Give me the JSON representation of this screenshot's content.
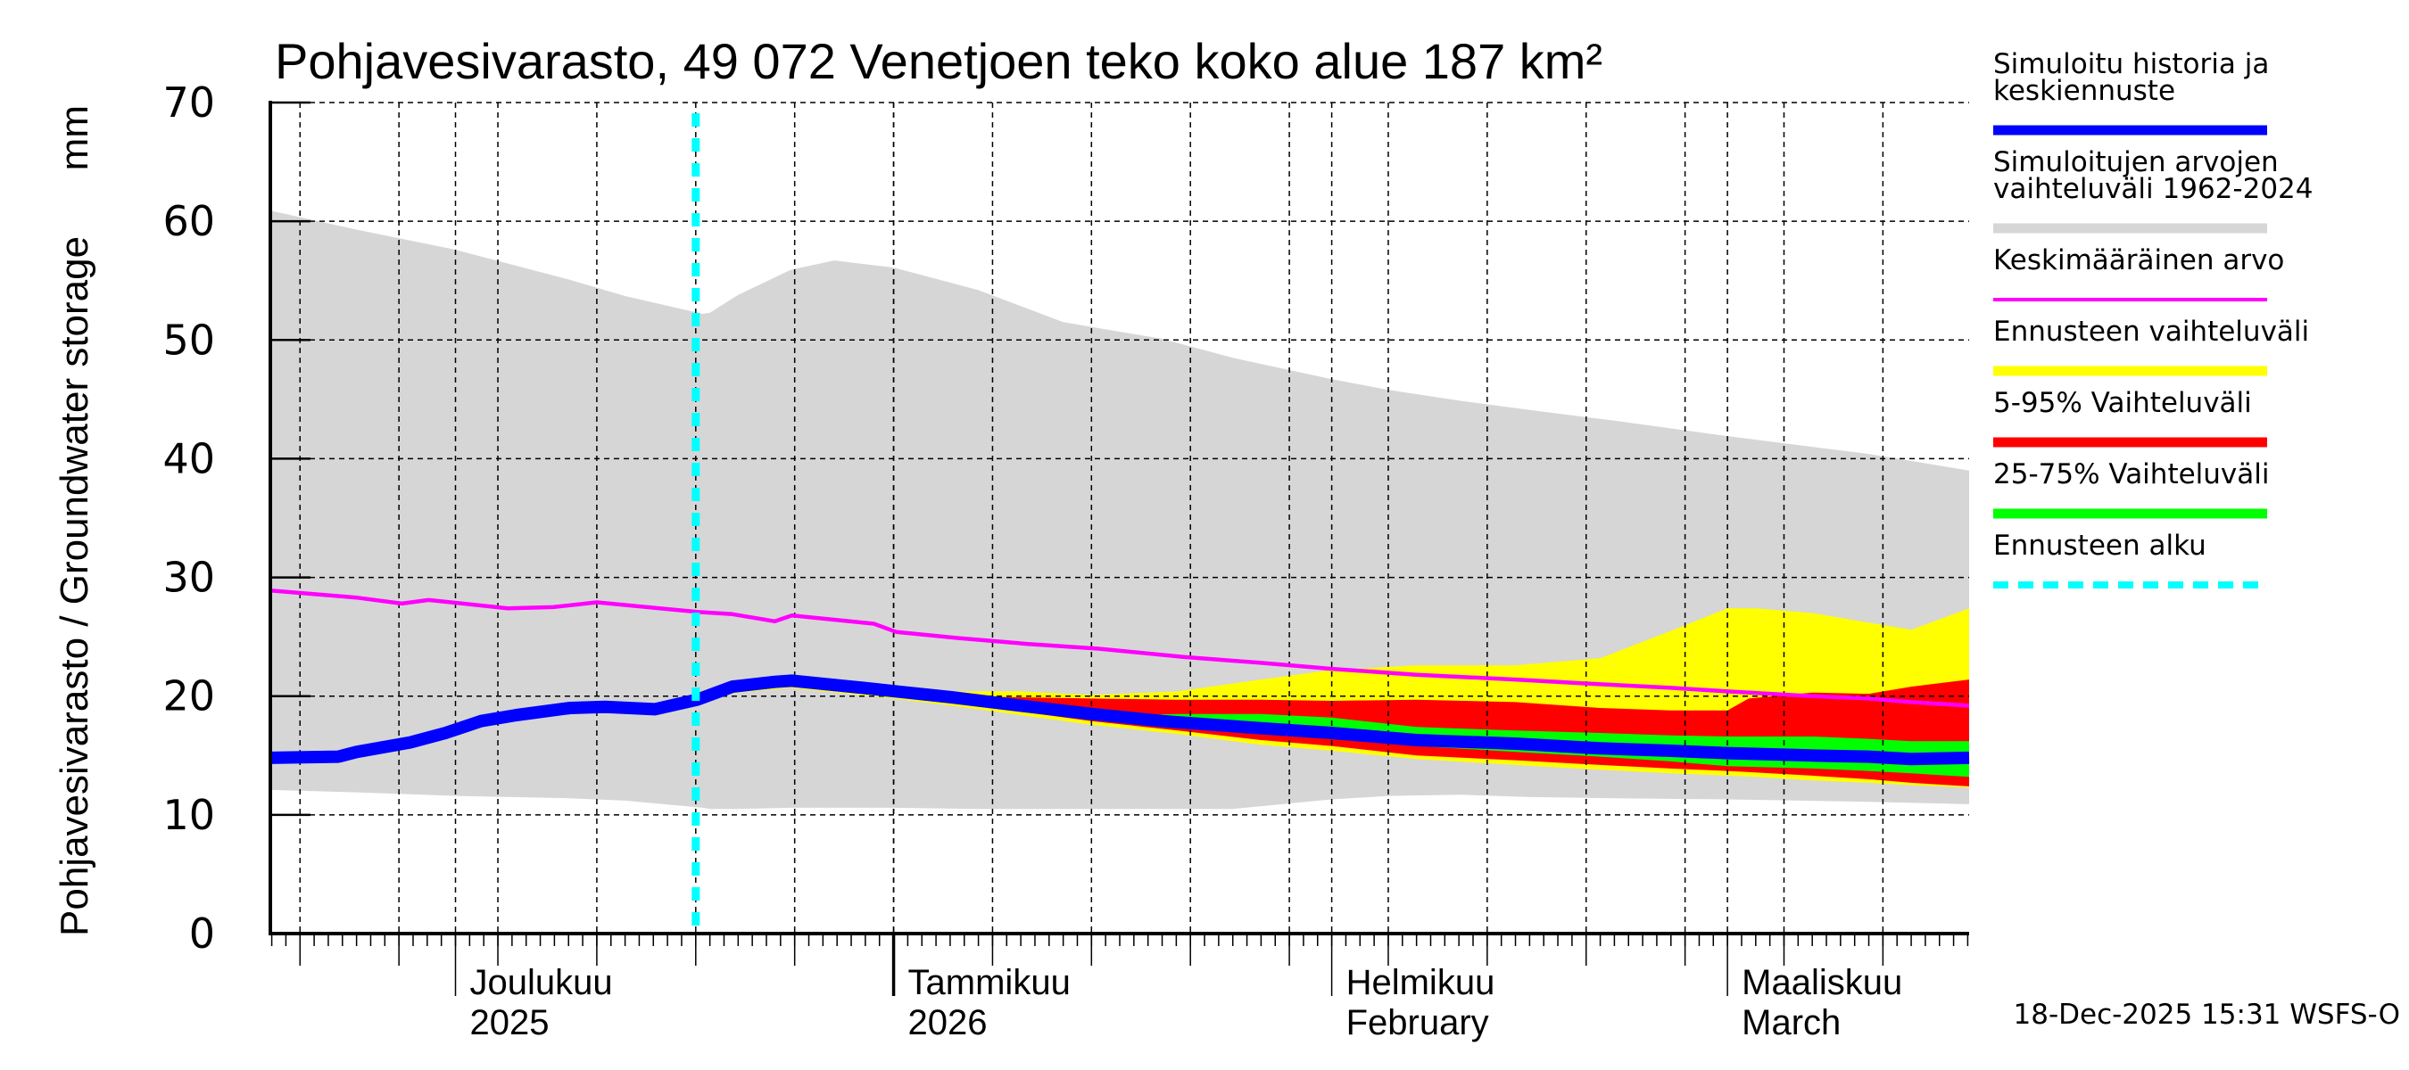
{
  "chart_data": {
    "type": "area",
    "title": "Pohjavesivarasto, 49 072 Venetjoen teko koko alue 187 km²",
    "ylabel": "Pohjavesivarasto / Groundwater storage",
    "yunit": "mm",
    "ylim": [
      0,
      70
    ],
    "yticks": [
      0,
      10,
      20,
      30,
      40,
      50,
      60,
      70
    ],
    "x_reference_date": "2025-12-01",
    "xlim_days": [
      -13.1,
      107.1
    ],
    "grid": true,
    "forecast_start_day": 17,
    "x_month_labels": [
      {
        "day": 0,
        "line1": "Joulukuu",
        "line2": "2025"
      },
      {
        "day": 31,
        "line1": "Tammikuu",
        "line2": "2026"
      },
      {
        "day": 62,
        "line1": "Helmikuu",
        "line2": "February"
      },
      {
        "day": 90,
        "line1": "Maaliskuu",
        "line2": "March"
      }
    ],
    "colors": {
      "history_range": "#d6d6d6",
      "mean": "#ff00ff",
      "forecast_range": "#ffff00",
      "p5_95": "#ff0000",
      "p25_75": "#00ff00",
      "simulated": "#0000ff",
      "forecast_start": "#00ffff"
    },
    "series": [
      {
        "name": "Simuloitujen arvojen vaihteluväli 1962-2024",
        "kind": "band",
        "color_key": "history_range",
        "x": [
          -13.1,
          -7,
          0,
          8,
          12,
          17.5,
          18,
          20,
          23.7,
          26.8,
          31,
          37,
          43,
          50,
          55,
          62,
          66,
          71,
          76,
          82,
          90,
          100,
          107.1
        ],
        "upper": [
          60.9,
          59.3,
          57.6,
          55.1,
          53.7,
          52.2,
          52.3,
          53.8,
          55.9,
          56.7,
          56.1,
          54.2,
          51.5,
          50.1,
          48.5,
          46.7,
          45.8,
          44.9,
          44.1,
          43.2,
          41.9,
          40.4,
          39.0
        ],
        "lower": [
          12.1,
          11.9,
          11.6,
          11.4,
          11.2,
          10.6,
          10.5,
          10.5,
          10.6,
          10.6,
          10.6,
          10.5,
          10.5,
          10.5,
          10.5,
          11.3,
          11.6,
          11.7,
          11.5,
          11.4,
          11.3,
          11.1,
          10.9
        ]
      },
      {
        "name": "Ennusteen vaihteluväli",
        "kind": "band",
        "color_key": "forecast_range",
        "x": [
          17,
          20,
          23.7,
          31,
          35.1,
          40,
          45,
          51.1,
          57,
          62,
          68,
          75,
          81,
          86,
          90,
          92,
          96,
          100,
          103,
          107.1
        ],
        "upper": [
          20.3,
          21.3,
          21.8,
          20.8,
          20.4,
          20.4,
          20.1,
          20.4,
          21.4,
          22.2,
          22.6,
          22.6,
          23.2,
          25.5,
          27.4,
          27.4,
          27.0,
          26.2,
          25.6,
          27.4
        ],
        "lower": [
          19.6,
          20.3,
          20.7,
          19.8,
          19.2,
          18.4,
          17.6,
          16.8,
          15.9,
          15.4,
          14.7,
          14.2,
          13.8,
          13.5,
          13.3,
          13.2,
          12.9,
          12.7,
          12.5,
          12.3
        ]
      },
      {
        "name": "5-95% Vaihteluväli",
        "kind": "band",
        "color_key": "p5_95",
        "x": [
          17,
          20,
          23.7,
          31,
          35.1,
          40,
          45,
          51.1,
          57,
          62,
          68,
          75,
          81,
          86,
          90,
          91.5,
          96,
          100,
          103,
          107.1
        ],
        "upper": [
          20.1,
          21.0,
          21.5,
          20.5,
          20.0,
          19.9,
          19.8,
          19.7,
          19.7,
          19.6,
          19.7,
          19.5,
          19.0,
          18.8,
          18.8,
          19.8,
          20.3,
          20.2,
          20.8,
          21.4
        ],
        "lower": [
          19.8,
          20.6,
          20.9,
          20.1,
          19.4,
          18.7,
          17.9,
          17.1,
          16.3,
          15.8,
          15.0,
          14.6,
          14.2,
          13.9,
          13.7,
          13.6,
          13.3,
          13.0,
          12.7,
          12.4
        ]
      },
      {
        "name": "25-75% Vaihteluväli",
        "kind": "band",
        "color_key": "p25_75",
        "x": [
          48,
          51.1,
          57,
          62,
          68,
          75,
          81,
          86,
          90,
          96,
          100,
          103,
          107.1
        ],
        "upper": [
          18.4,
          18.5,
          18.5,
          18.2,
          17.4,
          17.1,
          16.9,
          16.7,
          16.6,
          16.6,
          16.4,
          16.2,
          16.2
        ],
        "lower": [
          17.9,
          17.6,
          17.0,
          16.6,
          15.8,
          15.3,
          14.9,
          14.5,
          14.1,
          13.9,
          13.7,
          13.5,
          13.2
        ]
      },
      {
        "name": "Keskimääräinen arvo",
        "kind": "line",
        "color_key": "mean",
        "x": [
          -13.1,
          -7,
          -3.8,
          -1.9,
          3.7,
          6.9,
          10.0,
          17.1,
          19.6,
          22.6,
          23.8,
          29.6,
          31.2,
          35.5,
          40.4,
          45.5,
          51.5,
          57,
          62,
          68,
          75,
          81,
          86,
          90,
          96,
          100,
          103,
          107.1
        ],
        "y": [
          28.9,
          28.3,
          27.8,
          28.1,
          27.4,
          27.5,
          27.9,
          27.1,
          26.9,
          26.3,
          26.8,
          26.1,
          25.4,
          24.9,
          24.4,
          24.0,
          23.3,
          22.8,
          22.3,
          21.8,
          21.4,
          21.0,
          20.7,
          20.4,
          20.0,
          19.8,
          19.5,
          19.2
        ]
      },
      {
        "name": "Simuloitu historia ja keskiennuste",
        "kind": "line",
        "color_key": "simulated",
        "x": [
          -13.1,
          -8.3,
          -7,
          -3.2,
          -0.7,
          1.8,
          4.3,
          8.1,
          10.6,
          14.1,
          17.1,
          19.6,
          22.6,
          23.8,
          28.8,
          35.1,
          40.0,
          45.0,
          50.0,
          57,
          62,
          68,
          75,
          81,
          86,
          90,
          96,
          100,
          103,
          107.1
        ],
        "y": [
          14.8,
          14.9,
          15.3,
          16.1,
          16.9,
          17.9,
          18.4,
          19.0,
          19.1,
          18.9,
          19.7,
          20.8,
          21.2,
          21.3,
          20.7,
          19.9,
          19.2,
          18.5,
          17.9,
          17.3,
          16.9,
          16.3,
          16.0,
          15.6,
          15.4,
          15.2,
          15.0,
          14.9,
          14.7,
          14.8
        ]
      }
    ],
    "legend": {
      "position": "right",
      "entries": [
        {
          "label_lines": [
            "Simuloitu historia ja",
            "keskiennuste"
          ],
          "color_key": "simulated",
          "style": "thick"
        },
        {
          "label_lines": [
            "Simuloitujen arvojen",
            "vaihteluväli 1962-2024"
          ],
          "color_key": "history_range",
          "style": "thick"
        },
        {
          "label_lines": [
            "Keskimääräinen arvo"
          ],
          "color_key": "mean",
          "style": "thin"
        },
        {
          "label_lines": [
            "Ennusteen vaihteluväli"
          ],
          "color_key": "forecast_range",
          "style": "thick"
        },
        {
          "label_lines": [
            "5-95% Vaihteluväli"
          ],
          "color_key": "p5_95",
          "style": "thick"
        },
        {
          "label_lines": [
            "25-75% Vaihteluväli"
          ],
          "color_key": "p25_75",
          "style": "thick"
        },
        {
          "label_lines": [
            "Ennusteen alku"
          ],
          "color_key": "forecast_start",
          "style": "dashed"
        }
      ]
    },
    "footer": "18-Dec-2025 15:31 WSFS-O"
  }
}
